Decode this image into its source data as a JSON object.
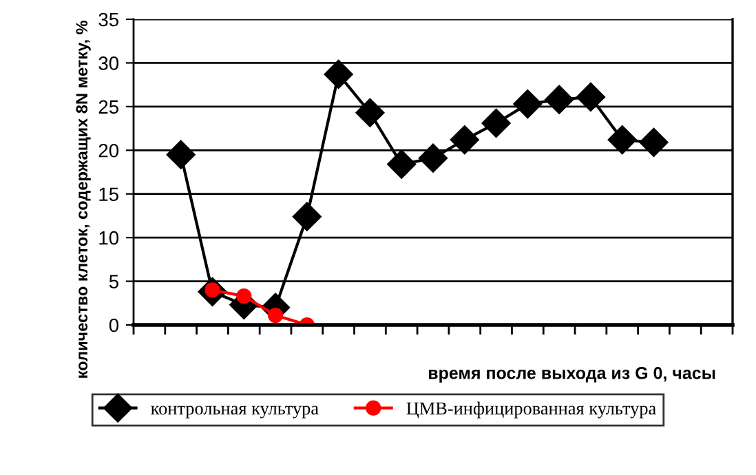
{
  "chart_data": {
    "type": "line",
    "xlabel": "время после выхода из G 0, часы",
    "ylabel": "количество клеток, содержащих 8N метку, %",
    "categories": [
      null,
      null,
      null,
      null,
      null,
      null,
      null,
      null,
      null,
      null,
      null,
      null,
      null,
      null,
      null,
      null,
      null,
      null,
      null
    ],
    "series": [
      {
        "name": "контрольная культура",
        "color": "#000000",
        "marker": "diamond",
        "values": [
          null,
          19.5,
          3.8,
          2.3,
          2.0,
          12.4,
          28.7,
          24.3,
          18.4,
          19.1,
          21.2,
          23.1,
          25.3,
          25.8,
          26.1,
          21.2,
          20.9,
          null,
          null
        ]
      },
      {
        "name": "ЦМВ-инфицированная культура",
        "color": "#ff0000",
        "marker": "circle",
        "values": [
          null,
          null,
          4.0,
          3.3,
          1.1,
          0.0,
          null,
          null,
          null,
          null,
          null,
          null,
          null,
          null,
          null,
          null,
          null,
          null,
          null
        ]
      }
    ],
    "ylim": [
      0,
      35
    ],
    "yticks": [
      0,
      5,
      10,
      15,
      20,
      25,
      30,
      35
    ],
    "grid": "y",
    "legend": "bottom",
    "tick_labels": "y",
    "line_style": "solid"
  }
}
